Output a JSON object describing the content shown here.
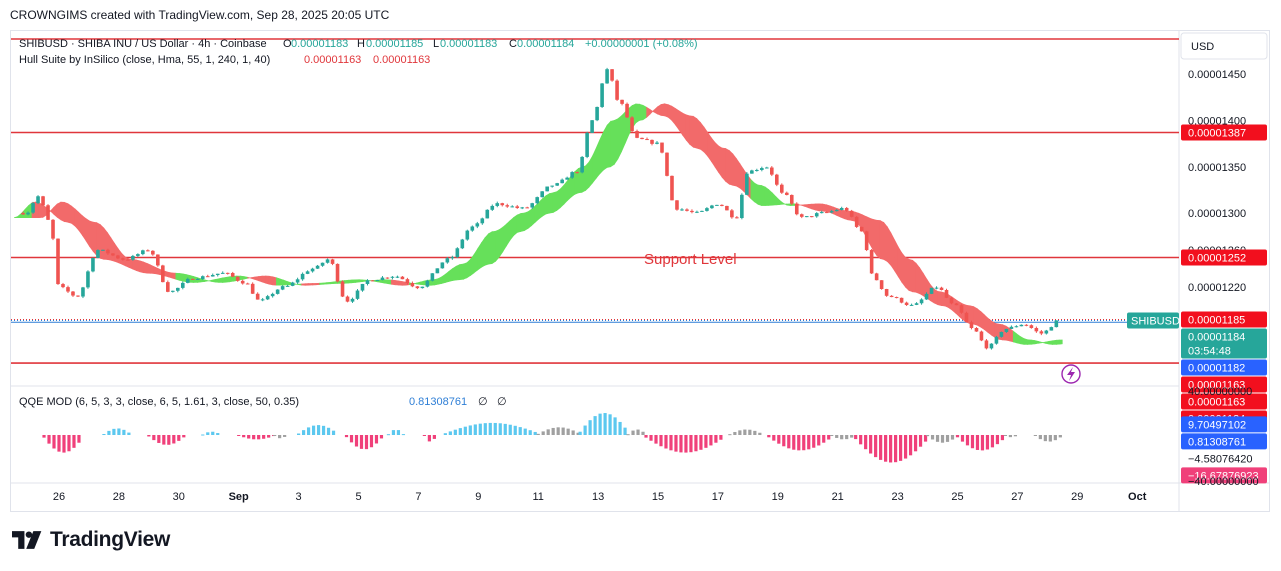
{
  "header": {
    "text": "CROWNGIMS created with TradingView.com, Sep 28, 2025 20:05 UTC"
  },
  "footer": {
    "brand": "TradingView"
  },
  "colors": {
    "up": "#26a69a",
    "down": "#ef5350",
    "hull_up": "#66e05a",
    "hull_down": "#f26a6a",
    "level_line": "#e0363b",
    "price_line": "#2f7fd6",
    "qqe_blue": "#5cc8ef",
    "qqe_pink": "#f0407a",
    "qqe_gray": "#a0a0a0",
    "label_red": "#f20f1e",
    "label_teal": "#26a69a",
    "label_blue": "#2962ff"
  },
  "chart_data": {
    "type": "candlestick",
    "symbol_line": {
      "title": "SHIBUSD · SHIBA INU / US Dollar · 4h · Coinbase",
      "o_label": "O",
      "o_value": "0.00001183",
      "h_label": "H",
      "h_value": "0.00001185",
      "l_label": "L",
      "l_value": "0.00001183",
      "c_label": "C",
      "c_value": "0.00001184",
      "change": "+0.00000001 (+0.08%)"
    },
    "hull_line": {
      "title": "Hull Suite by InSilico (close, Hma, 55, 1, 240, 1, 40)",
      "v1": "0.00001163",
      "v2": "0.00001163"
    },
    "qqe_line": {
      "title": "QQE MOD (6, 5, 3, 3, close, 6, 5, 1.61, 3, close, 50, 0.35)",
      "value": "0.81308761",
      "sym1": "∅",
      "sym2": "∅"
    },
    "annotation": "Support Level",
    "currency": "USD",
    "price_axis": {
      "ticks": [
        "0.00001450",
        "0.00001400",
        "0.00001350",
        "0.00001300",
        "0.00001260",
        "0.00001220"
      ],
      "tick_values": [
        1.45e-05,
        1.4e-05,
        1.35e-05,
        1.3e-05,
        1.26e-05,
        1.22e-05
      ],
      "range": [
        1.124e-05,
        1.488e-05
      ]
    },
    "horizontal_levels": [
      1.488e-05,
      1.387e-05,
      1.252e-05,
      1.138e-05
    ],
    "price_labels": [
      {
        "text": "0.00001387",
        "value": 1.387e-05,
        "style": "red"
      },
      {
        "text": "0.00001252",
        "value": 1.252e-05,
        "style": "red"
      },
      {
        "text": "0.00001185",
        "value": 1.185e-05,
        "style": "red"
      },
      {
        "text": "0.00001184",
        "value": 1.184e-05,
        "style": "teal",
        "sub": "03:54:48"
      },
      {
        "text": "0.00001182",
        "value": 1.182e-05,
        "style": "blue"
      },
      {
        "text": "0.00001163",
        "value": 1.163e-05,
        "style": "red"
      },
      {
        "text": "0.00001163",
        "value": 1.163e-05,
        "style": "red"
      },
      {
        "text": "0.00001134",
        "value": 1.134e-05,
        "style": "red"
      }
    ],
    "symbol_tag": "SHIBUSD",
    "x_axis": {
      "ticks": [
        "26",
        "28",
        "30",
        "Sep",
        "3",
        "5",
        "7",
        "9",
        "11",
        "13",
        "15",
        "17",
        "19",
        "21",
        "23",
        "25",
        "27",
        "29",
        "Oct"
      ],
      "tick_days": [
        0,
        2,
        4,
        6,
        8,
        10,
        12,
        14,
        16,
        18,
        20,
        22,
        24,
        26,
        28,
        30,
        32,
        34,
        36
      ]
    },
    "qqe_axis": {
      "labels": [
        {
          "text": "40.00000000",
          "value": 40,
          "style": "plain"
        },
        {
          "text": "9.70497102",
          "value": 9.70497102,
          "style": "blue"
        },
        {
          "text": "0.81308761",
          "value": 0.81308761,
          "style": "blue"
        },
        {
          "text": "−4.58076420",
          "value": -4.5807642,
          "style": "plain"
        },
        {
          "text": "−16.67876923",
          "value": -16.67876923,
          "style": "pink"
        },
        {
          "text": "−40.00000000",
          "value": -40,
          "style": "plain"
        }
      ],
      "range": [
        -40,
        40
      ]
    },
    "candle_anchors": [
      {
        "day": -1.1,
        "price": 1.3e-05
      },
      {
        "day": -0.7,
        "price": 1.318e-05
      },
      {
        "day": -0.3,
        "price": 1.29e-05
      },
      {
        "day": 0.0,
        "price": 1.22e-05
      },
      {
        "day": 0.6,
        "price": 1.21e-05
      },
      {
        "day": 1.3,
        "price": 1.26e-05
      },
      {
        "day": 2.2,
        "price": 1.25e-05
      },
      {
        "day": 3.0,
        "price": 1.26e-05
      },
      {
        "day": 3.7,
        "price": 1.215e-05
      },
      {
        "day": 4.5,
        "price": 1.23e-05
      },
      {
        "day": 5.5,
        "price": 1.235e-05
      },
      {
        "day": 6.2,
        "price": 1.225e-05
      },
      {
        "day": 6.7,
        "price": 1.205e-05
      },
      {
        "day": 7.5,
        "price": 1.22e-05
      },
      {
        "day": 8.5,
        "price": 1.24e-05
      },
      {
        "day": 9.0,
        "price": 1.25e-05
      },
      {
        "day": 9.6,
        "price": 1.205e-05
      },
      {
        "day": 10.4,
        "price": 1.228e-05
      },
      {
        "day": 11.2,
        "price": 1.232e-05
      },
      {
        "day": 12.0,
        "price": 1.22e-05
      },
      {
        "day": 13.0,
        "price": 1.25e-05
      },
      {
        "day": 13.8,
        "price": 1.285e-05
      },
      {
        "day": 14.6,
        "price": 1.31e-05
      },
      {
        "day": 15.5,
        "price": 1.305e-05
      },
      {
        "day": 16.5,
        "price": 1.33e-05
      },
      {
        "day": 17.3,
        "price": 1.345e-05
      },
      {
        "day": 17.8,
        "price": 1.4e-05
      },
      {
        "day": 18.3,
        "price": 1.455e-05
      },
      {
        "day": 18.7,
        "price": 1.42e-05
      },
      {
        "day": 19.3,
        "price": 1.38e-05
      },
      {
        "day": 20.0,
        "price": 1.375e-05
      },
      {
        "day": 20.6,
        "price": 1.305e-05
      },
      {
        "day": 21.3,
        "price": 1.3e-05
      },
      {
        "day": 22.0,
        "price": 1.31e-05
      },
      {
        "day": 22.6,
        "price": 1.295e-05
      },
      {
        "day": 23.0,
        "price": 1.345e-05
      },
      {
        "day": 23.6,
        "price": 1.35e-05
      },
      {
        "day": 24.2,
        "price": 1.32e-05
      },
      {
        "day": 24.8,
        "price": 1.295e-05
      },
      {
        "day": 25.5,
        "price": 1.3e-05
      },
      {
        "day": 26.2,
        "price": 1.305e-05
      },
      {
        "day": 26.8,
        "price": 1.28e-05
      },
      {
        "day": 27.2,
        "price": 1.23e-05
      },
      {
        "day": 27.7,
        "price": 1.21e-05
      },
      {
        "day": 28.5,
        "price": 1.2e-05
      },
      {
        "day": 29.3,
        "price": 1.22e-05
      },
      {
        "day": 29.9,
        "price": 1.2e-05
      },
      {
        "day": 30.5,
        "price": 1.175e-05
      },
      {
        "day": 31.0,
        "price": 1.155e-05
      },
      {
        "day": 31.6,
        "price": 1.175e-05
      },
      {
        "day": 32.2,
        "price": 1.18e-05
      },
      {
        "day": 32.8,
        "price": 1.17e-05
      },
      {
        "day": 33.4,
        "price": 1.184e-05
      }
    ],
    "hull_anchors": [
      {
        "day": -1.5,
        "value": 1.295e-05
      },
      {
        "day": -0.8,
        "value": 1.312e-05
      },
      {
        "day": 0.3,
        "value": 1.29e-05
      },
      {
        "day": 1.5,
        "value": 1.25e-05
      },
      {
        "day": 3.0,
        "value": 1.235e-05
      },
      {
        "day": 4.5,
        "value": 1.225e-05
      },
      {
        "day": 6.0,
        "value": 1.232e-05
      },
      {
        "day": 7.3,
        "value": 1.222e-05
      },
      {
        "day": 8.5,
        "value": 1.224e-05
      },
      {
        "day": 10.0,
        "value": 1.228e-05
      },
      {
        "day": 11.5,
        "value": 1.222e-05
      },
      {
        "day": 12.5,
        "value": 1.228e-05
      },
      {
        "day": 13.5,
        "value": 1.245e-05
      },
      {
        "day": 14.5,
        "value": 1.28e-05
      },
      {
        "day": 15.5,
        "value": 1.3e-05
      },
      {
        "day": 16.5,
        "value": 1.322e-05
      },
      {
        "day": 17.5,
        "value": 1.35e-05
      },
      {
        "day": 18.5,
        "value": 1.4e-05
      },
      {
        "day": 19.3,
        "value": 1.418e-05
      },
      {
        "day": 20.2,
        "value": 1.405e-05
      },
      {
        "day": 21.3,
        "value": 1.37e-05
      },
      {
        "day": 22.5,
        "value": 1.33e-05
      },
      {
        "day": 23.5,
        "value": 1.308e-05
      },
      {
        "day": 24.5,
        "value": 1.31e-05
      },
      {
        "day": 25.5,
        "value": 1.302e-05
      },
      {
        "day": 26.5,
        "value": 1.292e-05
      },
      {
        "day": 27.5,
        "value": 1.25e-05
      },
      {
        "day": 28.5,
        "value": 1.215e-05
      },
      {
        "day": 29.5,
        "value": 1.2e-05
      },
      {
        "day": 30.5,
        "value": 1.18e-05
      },
      {
        "day": 31.5,
        "value": 1.163e-05
      },
      {
        "day": 32.3,
        "value": 1.158e-05
      },
      {
        "day": 33.5,
        "value": 1.163e-05
      }
    ],
    "hull_color_changes": [
      {
        "day": -1.5,
        "trend": "up"
      },
      {
        "day": -0.9,
        "trend": "down"
      },
      {
        "day": 3.8,
        "trend": "up"
      },
      {
        "day": 6.2,
        "trend": "down"
      },
      {
        "day": 7.2,
        "trend": "up"
      },
      {
        "day": 8.0,
        "trend": "down"
      },
      {
        "day": 8.7,
        "trend": "up"
      },
      {
        "day": 11.0,
        "trend": "down"
      },
      {
        "day": 11.6,
        "trend": "up"
      },
      {
        "day": 19.6,
        "trend": "down"
      },
      {
        "day": 23.0,
        "trend": "up"
      },
      {
        "day": 24.6,
        "trend": "down"
      },
      {
        "day": 31.8,
        "trend": "up"
      }
    ],
    "qqe_segments": [
      {
        "from": -0.5,
        "to": 0.8,
        "type": "pink",
        "peak": -16
      },
      {
        "from": 1.5,
        "to": 2.4,
        "type": "blue",
        "peak": 6
      },
      {
        "from": 3.0,
        "to": 4.2,
        "type": "pink",
        "peak": -9
      },
      {
        "from": 4.8,
        "to": 5.4,
        "type": "blue",
        "peak": 3
      },
      {
        "from": 6.0,
        "to": 7.2,
        "type": "pink",
        "peak": -4
      },
      {
        "from": 7.2,
        "to": 7.6,
        "type": "gray",
        "peak": -3
      },
      {
        "from": 8.0,
        "to": 9.3,
        "type": "blue",
        "peak": 9
      },
      {
        "from": 9.6,
        "to": 10.8,
        "type": "pink",
        "peak": -13
      },
      {
        "from": 11.0,
        "to": 11.5,
        "type": "blue",
        "peak": 5
      },
      {
        "from": 12.2,
        "to": 12.6,
        "type": "pink",
        "peak": -6
      },
      {
        "from": 12.9,
        "to": 16.0,
        "type": "blue",
        "peak": 11
      },
      {
        "from": 16.0,
        "to": 17.4,
        "type": "gray",
        "peak": 7
      },
      {
        "from": 17.4,
        "to": 19.0,
        "type": "blue",
        "peak": 20
      },
      {
        "from": 19.0,
        "to": 19.6,
        "type": "gray",
        "peak": 5
      },
      {
        "from": 19.6,
        "to": 22.2,
        "type": "pink",
        "peak": -16
      },
      {
        "from": 22.4,
        "to": 23.5,
        "type": "gray",
        "peak": 5
      },
      {
        "from": 23.7,
        "to": 25.8,
        "type": "pink",
        "peak": -14
      },
      {
        "from": 25.8,
        "to": 26.6,
        "type": "gray",
        "peak": -4
      },
      {
        "from": 26.6,
        "to": 29.0,
        "type": "pink",
        "peak": -25
      },
      {
        "from": 29.0,
        "to": 30.0,
        "type": "gray",
        "peak": -7
      },
      {
        "from": 30.0,
        "to": 31.6,
        "type": "pink",
        "peak": -14
      },
      {
        "from": 31.6,
        "to": 32.0,
        "type": "gray",
        "peak": -2
      },
      {
        "from": 32.6,
        "to": 33.5,
        "type": "gray",
        "peak": -6
      }
    ]
  }
}
